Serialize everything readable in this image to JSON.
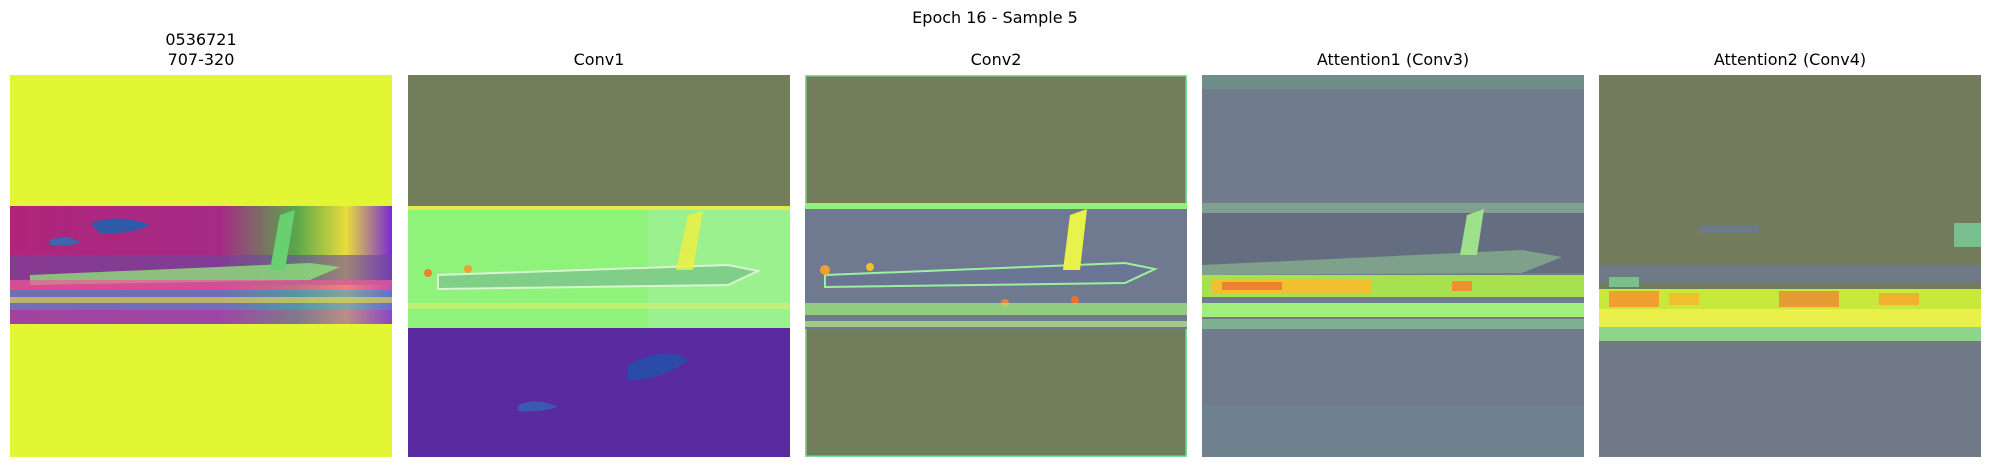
{
  "figure": {
    "title": "Epoch 16 - Sample 5"
  },
  "panels": [
    {
      "label_line1": "0536721",
      "label_line2": "707-320",
      "image": "airplane-input-image"
    },
    {
      "title": "Conv1",
      "image": "conv1-feature-map-overlay"
    },
    {
      "title": "Conv2",
      "image": "conv2-feature-map-overlay"
    },
    {
      "title": "Attention1 (Conv3)",
      "image": "attention1-heatmap-overlay"
    },
    {
      "title": "Attention2 (Conv4)",
      "image": "attention2-heatmap-overlay"
    }
  ]
}
